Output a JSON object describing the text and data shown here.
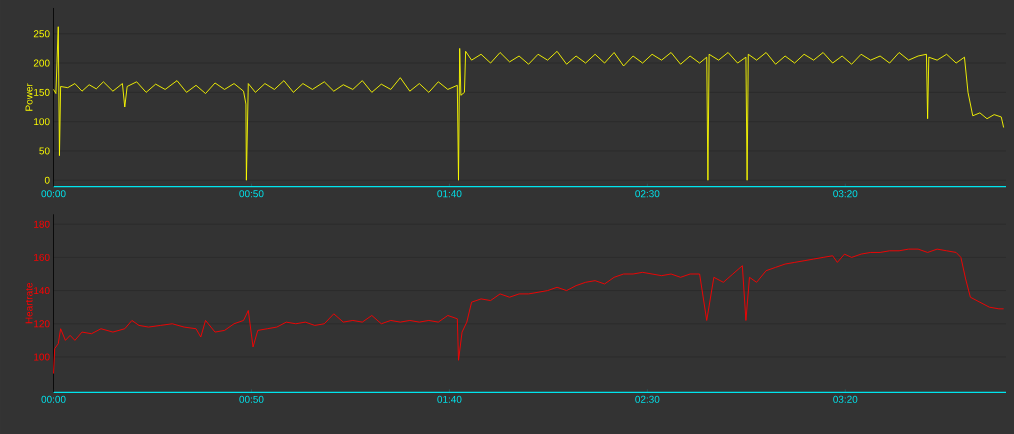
{
  "chart_data": [
    {
      "type": "line",
      "ylabel": "Power",
      "xlim": [
        0,
        4.01
      ],
      "ylim": [
        -11,
        294
      ],
      "grid": "y",
      "xticks": [
        {
          "value": 0,
          "label": "00:00"
        },
        {
          "value": 0.8333,
          "label": "00:50"
        },
        {
          "value": 1.6667,
          "label": "01:40"
        },
        {
          "value": 2.5,
          "label": "02:30"
        },
        {
          "value": 3.3333,
          "label": "03:20"
        }
      ],
      "yticks": [
        0,
        50,
        100,
        150,
        200,
        250
      ],
      "x": [
        0.0,
        0.01,
        0.02,
        0.025,
        0.03,
        0.06,
        0.09,
        0.12,
        0.15,
        0.18,
        0.21,
        0.25,
        0.29,
        0.3,
        0.31,
        0.35,
        0.39,
        0.43,
        0.47,
        0.52,
        0.56,
        0.6,
        0.64,
        0.68,
        0.72,
        0.76,
        0.8,
        0.81,
        0.812,
        0.82,
        0.85,
        0.89,
        0.93,
        0.97,
        1.01,
        1.05,
        1.09,
        1.14,
        1.18,
        1.22,
        1.26,
        1.3,
        1.34,
        1.38,
        1.42,
        1.46,
        1.5,
        1.54,
        1.58,
        1.62,
        1.66,
        1.7,
        1.705,
        1.71,
        1.715,
        1.73,
        1.735,
        1.76,
        1.8,
        1.84,
        1.88,
        1.92,
        1.96,
        2.0,
        2.04,
        2.08,
        2.12,
        2.16,
        2.2,
        2.24,
        2.28,
        2.32,
        2.36,
        2.4,
        2.44,
        2.48,
        2.52,
        2.56,
        2.6,
        2.64,
        2.68,
        2.72,
        2.75,
        2.755,
        2.76,
        2.8,
        2.84,
        2.88,
        2.915,
        2.92,
        2.925,
        2.96,
        3.0,
        3.04,
        3.08,
        3.12,
        3.16,
        3.2,
        3.24,
        3.28,
        3.32,
        3.36,
        3.4,
        3.44,
        3.48,
        3.52,
        3.56,
        3.6,
        3.64,
        3.675,
        3.68,
        3.685,
        3.72,
        3.76,
        3.8,
        3.835,
        3.85,
        3.87,
        3.9,
        3.93,
        3.96,
        3.99,
        4.0
      ],
      "series": [
        {
          "color": "#ffff00",
          "values": [
            155,
            148,
            262,
            42,
            160,
            158,
            165,
            152,
            163,
            156,
            168,
            152,
            165,
            125,
            160,
            168,
            150,
            164,
            155,
            170,
            150,
            162,
            148,
            166,
            155,
            165,
            152,
            130,
            0,
            165,
            150,
            165,
            155,
            170,
            150,
            165,
            155,
            168,
            152,
            163,
            155,
            170,
            150,
            164,
            155,
            175,
            152,
            165,
            150,
            168,
            155,
            162,
            0,
            225,
            145,
            150,
            220,
            205,
            215,
            200,
            218,
            202,
            212,
            198,
            215,
            205,
            220,
            198,
            212,
            200,
            215,
            200,
            218,
            195,
            212,
            200,
            215,
            205,
            218,
            198,
            212,
            200,
            210,
            0,
            215,
            205,
            218,
            200,
            210,
            0,
            215,
            205,
            218,
            198,
            212,
            200,
            215,
            205,
            218,
            200,
            212,
            198,
            215,
            205,
            212,
            200,
            218,
            205,
            212,
            215,
            105,
            210,
            205,
            215,
            200,
            210,
            150,
            110,
            115,
            105,
            112,
            108,
            90
          ]
        }
      ]
    },
    {
      "type": "line",
      "ylabel": "Heartrate",
      "xlim": [
        0,
        4.01
      ],
      "ylim": [
        78.7,
        186
      ],
      "grid": "y",
      "xticks": [
        {
          "value": 0,
          "label": "00:00"
        },
        {
          "value": 0.8333,
          "label": "00:50"
        },
        {
          "value": 1.6667,
          "label": "01:40"
        },
        {
          "value": 2.5,
          "label": "02:30"
        },
        {
          "value": 3.3333,
          "label": "03:20"
        }
      ],
      "yticks": [
        100,
        120,
        140,
        160,
        180
      ],
      "x": [
        0.0,
        0.005,
        0.02,
        0.03,
        0.05,
        0.07,
        0.09,
        0.12,
        0.16,
        0.2,
        0.25,
        0.3,
        0.33,
        0.36,
        0.4,
        0.45,
        0.5,
        0.55,
        0.6,
        0.62,
        0.64,
        0.68,
        0.72,
        0.76,
        0.8,
        0.82,
        0.84,
        0.86,
        0.9,
        0.94,
        0.98,
        1.02,
        1.06,
        1.1,
        1.14,
        1.18,
        1.22,
        1.26,
        1.3,
        1.34,
        1.38,
        1.42,
        1.46,
        1.5,
        1.54,
        1.58,
        1.62,
        1.66,
        1.7,
        1.705,
        1.72,
        1.74,
        1.76,
        1.8,
        1.84,
        1.88,
        1.92,
        1.96,
        2.0,
        2.04,
        2.08,
        2.12,
        2.16,
        2.2,
        2.24,
        2.28,
        2.32,
        2.36,
        2.4,
        2.44,
        2.48,
        2.52,
        2.56,
        2.6,
        2.64,
        2.68,
        2.72,
        2.75,
        2.78,
        2.82,
        2.86,
        2.9,
        2.915,
        2.93,
        2.96,
        3.0,
        3.04,
        3.08,
        3.12,
        3.16,
        3.2,
        3.24,
        3.28,
        3.3,
        3.33,
        3.36,
        3.4,
        3.44,
        3.48,
        3.52,
        3.56,
        3.6,
        3.64,
        3.68,
        3.72,
        3.76,
        3.8,
        3.82,
        3.84,
        3.86,
        3.9,
        3.94,
        3.98,
        4.0
      ],
      "series": [
        {
          "color": "#ff0000",
          "values": [
            90,
            105,
            108,
            117,
            110,
            113,
            110,
            115,
            114,
            117,
            115,
            117,
            122,
            119,
            118,
            119,
            120,
            118,
            117,
            112,
            122,
            115,
            116,
            120,
            122,
            128,
            106,
            116,
            117,
            118,
            121,
            120,
            121,
            119,
            120,
            126,
            121,
            122,
            121,
            125,
            120,
            122,
            121,
            122,
            121,
            122,
            121,
            125,
            123,
            98,
            115,
            121,
            133,
            135,
            134,
            138,
            136,
            138,
            138,
            139,
            140,
            142,
            140,
            143,
            145,
            146,
            144,
            148,
            150,
            150,
            151,
            150,
            149,
            150,
            148,
            150,
            150,
            122,
            148,
            145,
            150,
            155,
            122,
            148,
            145,
            152,
            154,
            156,
            157,
            158,
            159,
            160,
            161,
            157,
            162,
            160,
            162,
            163,
            163,
            164,
            164,
            165,
            165,
            163,
            165,
            164,
            163,
            160,
            147,
            136,
            133,
            130,
            129,
            129
          ]
        }
      ]
    }
  ]
}
